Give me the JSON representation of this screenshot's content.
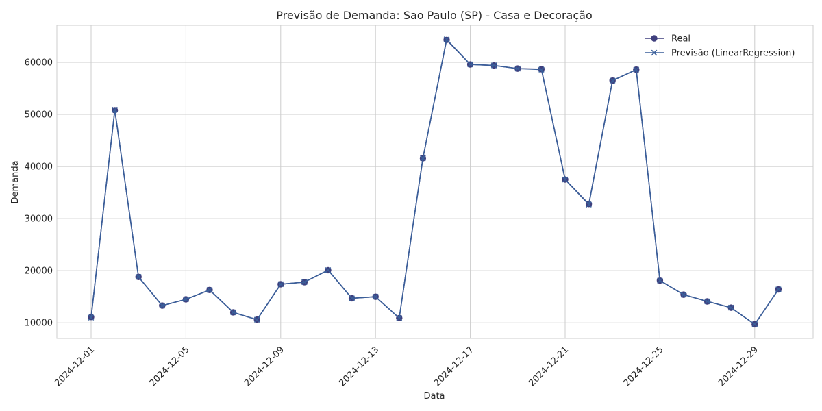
{
  "chart_data": {
    "type": "line",
    "title": "Previsão de Demanda: Sao Paulo (SP) - Casa e Decoração",
    "xlabel": "Data",
    "ylabel": "Demanda",
    "x": [
      "2024-12-01",
      "2024-12-02",
      "2024-12-03",
      "2024-12-04",
      "2024-12-05",
      "2024-12-06",
      "2024-12-07",
      "2024-12-08",
      "2024-12-09",
      "2024-12-10",
      "2024-12-11",
      "2024-12-12",
      "2024-12-13",
      "2024-12-14",
      "2024-12-15",
      "2024-12-16",
      "2024-12-17",
      "2024-12-18",
      "2024-12-19",
      "2024-12-20",
      "2024-12-21",
      "2024-12-22",
      "2024-12-23",
      "2024-12-24",
      "2024-12-25",
      "2024-12-26",
      "2024-12-27",
      "2024-12-28",
      "2024-12-29",
      "2024-12-30"
    ],
    "x_ticks": [
      "2024-12-01",
      "2024-12-05",
      "2024-12-09",
      "2024-12-13",
      "2024-12-17",
      "2024-12-21",
      "2024-12-25",
      "2024-12-29"
    ],
    "y_ticks": [
      10000,
      20000,
      30000,
      40000,
      50000,
      60000
    ],
    "ylim": [
      7000,
      67100
    ],
    "grid": true,
    "legend_position": "top-right",
    "series": [
      {
        "name": "Real",
        "marker": "circle",
        "color": "#3f3f7d",
        "values": [
          11100,
          50800,
          18800,
          13300,
          14500,
          16300,
          12000,
          10600,
          17400,
          17800,
          20100,
          14700,
          15000,
          10900,
          41600,
          64300,
          59600,
          59400,
          58800,
          58700,
          37500,
          32800,
          56500,
          58600,
          18100,
          15400,
          14100,
          12900,
          9700,
          16400
        ]
      },
      {
        "name": "Previsão (LinearRegression)",
        "marker": "x",
        "color": "#3a5f9a",
        "values": [
          11000,
          50900,
          18800,
          13300,
          14500,
          16300,
          12000,
          10600,
          17400,
          17800,
          20100,
          14700,
          15000,
          10900,
          41600,
          64400,
          59600,
          59400,
          58800,
          58600,
          37500,
          32700,
          56500,
          58600,
          18100,
          15400,
          14100,
          12900,
          9700,
          16400
        ]
      }
    ]
  }
}
